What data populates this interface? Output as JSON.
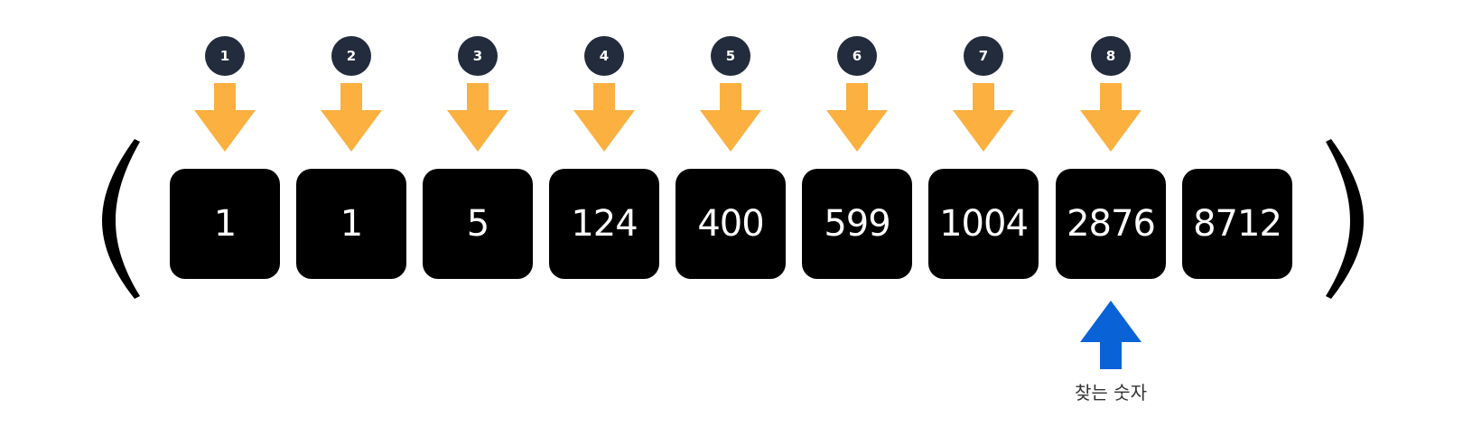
{
  "colors": {
    "pointer_arrow": "#fbb040",
    "target_arrow": "#0a63d6",
    "badge": "#232c3d",
    "box": "#000000",
    "box_text": "#ffffff"
  },
  "array": {
    "values": [
      "1",
      "1",
      "5",
      "124",
      "400",
      "599",
      "1004",
      "2876",
      "8712"
    ]
  },
  "steps": [
    "1",
    "2",
    "3",
    "4",
    "5",
    "6",
    "7",
    "8"
  ],
  "target": {
    "index": 7,
    "label": "찾는 숫자"
  }
}
